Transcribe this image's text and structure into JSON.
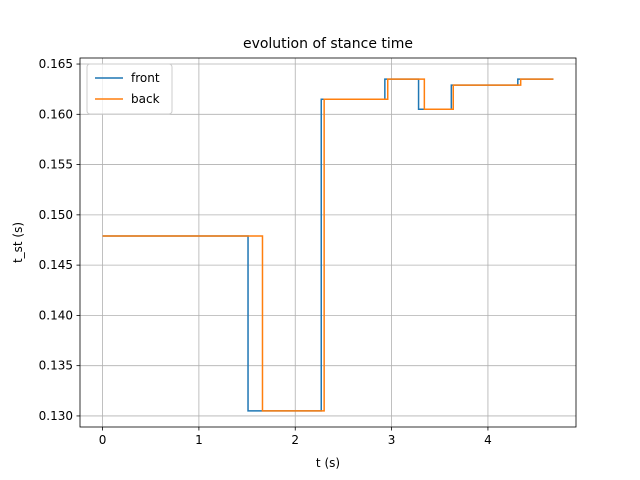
{
  "chart_data": {
    "type": "line",
    "title": "evolution of stance time",
    "xlabel": "t (s)",
    "ylabel": "t_st (s)",
    "xlim": [
      -0.234,
      4.914
    ],
    "ylim": [
      0.1289,
      0.1656
    ],
    "xticks": [
      0,
      1,
      2,
      3,
      4
    ],
    "xtick_labels": [
      "0",
      "1",
      "2",
      "3",
      "4"
    ],
    "yticks": [
      0.13,
      0.135,
      0.14,
      0.145,
      0.15,
      0.155,
      0.16,
      0.165
    ],
    "ytick_labels": [
      "0.130",
      "0.135",
      "0.140",
      "0.145",
      "0.150",
      "0.155",
      "0.160",
      "0.165"
    ],
    "grid": true,
    "legend_position": "top-left",
    "step": true,
    "series": [
      {
        "name": "front",
        "color": "#1f77b4",
        "x": [
          0,
          1.51,
          2.27,
          2.93,
          3.28,
          3.62,
          4.31,
          4.68
        ],
        "y": [
          0.1479,
          0.1305,
          0.1615,
          0.1635,
          0.1605,
          0.1629,
          0.1635,
          0.1635
        ]
      },
      {
        "name": "back",
        "color": "#ff7f0e",
        "x": [
          0,
          1.66,
          2.3,
          2.96,
          3.34,
          3.64,
          4.34,
          4.68
        ],
        "y": [
          0.1479,
          0.1305,
          0.1615,
          0.1635,
          0.1605,
          0.1629,
          0.1635,
          0.1635
        ]
      }
    ]
  }
}
